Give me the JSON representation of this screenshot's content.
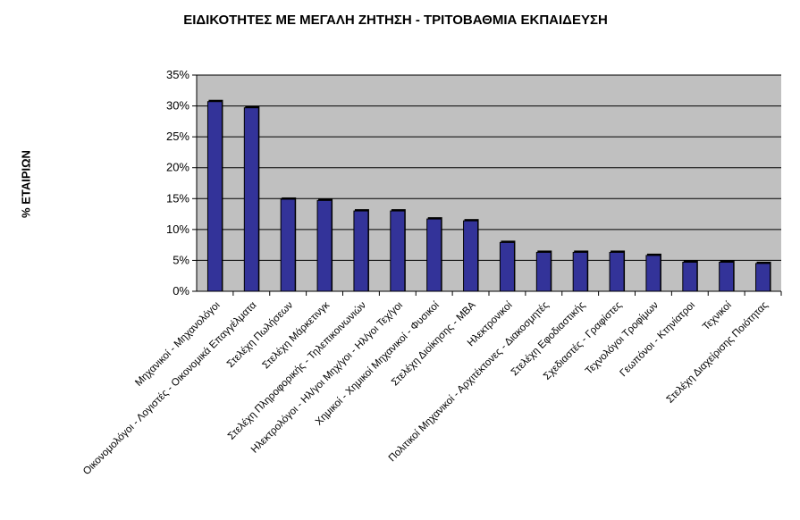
{
  "chart_data": {
    "type": "bar",
    "title": "ΕΙΔΙΚΟΤΗΤΕΣ ΜΕ ΜΕΓΑΛΗ ΖΗΤΗΣΗ - ΤΡΙΤΟΒΑΘΜΙΑ ΕΚΠΑΙΔΕΥΣΗ",
    "xlabel": "",
    "ylabel": "% ΕΤΑΙΡΙΩΝ",
    "ylim": [
      0,
      35
    ],
    "yticks": [
      "0%",
      "5%",
      "10%",
      "15%",
      "20%",
      "25%",
      "30%",
      "35%"
    ],
    "grid": true,
    "bar_color": "#333399",
    "plot_background": "#c0c0c0",
    "categories": [
      "Μηχανικοί - Μηχανολόγοι",
      "Οικονομολόγοι - Λογιστές - Οικονομικά Επαγγέλματα",
      "Στελέχη Πωλήσεων",
      "Στελέχη Μάρκετινγκ",
      "Στελέχη Πληροφορικής - Τηλεπικοινωνιών",
      "Ηλεκτρολόγοι - Ηλ/γοι Μηχ/γοι - Ηλ/γοι Τεχ/γοι",
      "Χημικοί - Χημικοί Μηχανικοί - Φυσικοί",
      "Στελέχη Διοίκησης - MBA",
      "Ηλεκτρονικοί",
      "Πολιτικοί Μηχανικοί - Αρχιτέκτονες - Διακοσμητές",
      "Στελέχη Εφοδιαστικής",
      "Σχεδιαστές - Γραφίστες",
      "Τεχνολόγοι Τροφίμων",
      "Γεωπόνοι - Κτηνίατροι",
      "Τεχνικοί",
      "Στελέχη Διαχείρισης Ποιότητας"
    ],
    "values": [
      30.7,
      29.7,
      14.9,
      14.7,
      13.0,
      13.0,
      11.7,
      11.4,
      7.9,
      6.3,
      6.3,
      6.3,
      5.8,
      4.7,
      4.7,
      4.5
    ]
  }
}
